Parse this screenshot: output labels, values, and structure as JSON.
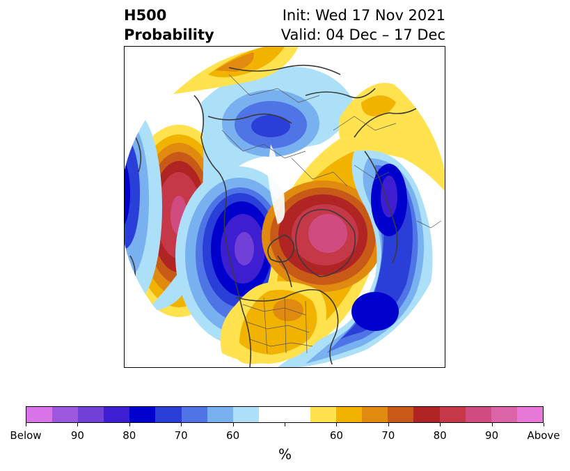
{
  "title": {
    "line1_left": "H500",
    "line2_left": "Probability",
    "line1_right": "Init: Wed 17 Nov 2021",
    "line2_right": "Valid: 04 Dec – 17 Dec"
  },
  "colorbar": {
    "colors": [
      "#d873e8",
      "#9e58e0",
      "#7040d8",
      "#3e1ed0",
      "#0000cd",
      "#2a3ed8",
      "#4e74e6",
      "#78b0f0",
      "#ace0f8",
      "#ffffff",
      "#ffffff",
      "#ffe24e",
      "#f2b200",
      "#e08a10",
      "#c85a18",
      "#b02424",
      "#c43848",
      "#d04c80",
      "#dc64a8",
      "#e878d8"
    ],
    "labels": [
      "Below",
      "90",
      "80",
      "70",
      "60",
      "60",
      "70",
      "80",
      "90",
      "Above"
    ],
    "unit": "%"
  },
  "map": {
    "projection": "north-polar-stereographic",
    "features": [
      {
        "name": "west-pacific-above-anomaly",
        "type": "above",
        "peak": "90"
      },
      {
        "name": "alaska-below-anomaly",
        "type": "below",
        "peak": "90"
      },
      {
        "name": "greenland-above-anomaly",
        "type": "above",
        "peak": "90"
      },
      {
        "name": "siberia-below-anomaly",
        "type": "below",
        "peak": "80"
      },
      {
        "name": "north-atlantic-below-anomaly",
        "type": "below",
        "peak": "80"
      },
      {
        "name": "eastern-us-above-anomaly",
        "type": "above",
        "peak": "70"
      },
      {
        "name": "china-above-anomaly",
        "type": "above",
        "peak": "70"
      }
    ]
  }
}
